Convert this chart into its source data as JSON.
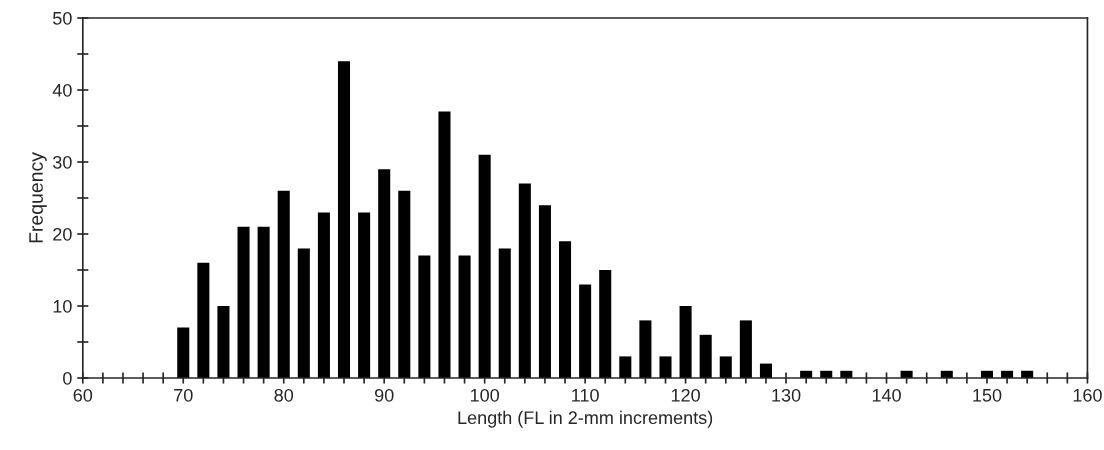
{
  "chart_data": {
    "type": "histogram",
    "xlabel": "Length (FL in 2-mm increments)",
    "ylabel": "Frequency",
    "color": "#000000",
    "bins": [
      69,
      71,
      73,
      75,
      77,
      79,
      81,
      83,
      85,
      87,
      89,
      91,
      93,
      95,
      97,
      99,
      101,
      103,
      105,
      107,
      109,
      111,
      113,
      115,
      117,
      119,
      121,
      123,
      125,
      127,
      129,
      131,
      133,
      135,
      137,
      139,
      141,
      143,
      145,
      147,
      149,
      151,
      153,
      155
    ],
    "values": [
      7,
      16,
      10,
      21,
      21,
      26,
      18,
      23,
      44,
      23,
      29,
      26,
      17,
      37,
      17,
      31,
      18,
      27,
      24,
      19,
      13,
      15,
      3,
      8,
      3,
      10,
      6,
      3,
      8,
      2,
      0,
      1,
      1,
      1,
      0,
      0,
      1,
      0,
      1,
      0,
      1,
      1,
      1
    ],
    "xlim": [
      60,
      160
    ],
    "ylim": [
      0,
      50
    ],
    "xticks": [
      60,
      {
        "value": 62,
        "label": null
      },
      {
        "value": 64,
        "label": null
      },
      {
        "value": 66,
        "label": null
      },
      {
        "value": 68,
        "label": null
      },
      70,
      {
        "value": 72,
        "label": null
      },
      {
        "value": 74,
        "label": null
      },
      {
        "value": 76,
        "label": null
      },
      {
        "value": 78,
        "label": null
      },
      80,
      {
        "value": 82,
        "label": null
      },
      {
        "value": 84,
        "label": null
      },
      {
        "value": 86,
        "label": null
      },
      {
        "value": 88,
        "label": null
      },
      90,
      {
        "value": 92,
        "label": null
      },
      {
        "value": 94,
        "label": null
      },
      {
        "value": 96,
        "label": null
      },
      {
        "value": 98,
        "label": null
      },
      100,
      {
        "value": 102,
        "label": null
      },
      {
        "value": 104,
        "label": null
      },
      {
        "value": 106,
        "label": null
      },
      {
        "value": 108,
        "label": null
      },
      110,
      {
        "value": 112,
        "label": null
      },
      {
        "value": 114,
        "label": null
      },
      {
        "value": 116,
        "label": null
      },
      {
        "value": 118,
        "label": null
      },
      120,
      {
        "value": 122,
        "label": null
      },
      {
        "value": 124,
        "label": null
      },
      {
        "value": 126,
        "label": null
      },
      {
        "value": 128,
        "label": null
      },
      130,
      {
        "value": 132,
        "label": null
      },
      {
        "value": 134,
        "label": null
      },
      {
        "value": 136,
        "label": null
      },
      {
        "value": 138,
        "label": null
      },
      140,
      {
        "value": 142,
        "label": null
      },
      {
        "value": 144,
        "label": null
      },
      {
        "value": 146,
        "label": null
      },
      {
        "value": 148,
        "label": null
      },
      150,
      {
        "value": 152,
        "label": null
      },
      {
        "value": 154,
        "label": null
      },
      {
        "value": 156,
        "label": null
      },
      {
        "value": 158,
        "label": null
      },
      160
    ],
    "yticks": [
      0,
      {
        "value": 5,
        "label": null
      },
      10,
      {
        "value": 15,
        "label": null
      },
      20,
      {
        "value": 25,
        "label": null
      },
      30,
      {
        "value": 35,
        "label": null
      },
      40,
      {
        "value": 45,
        "label": null
      },
      50
    ],
    "grid": false
  }
}
